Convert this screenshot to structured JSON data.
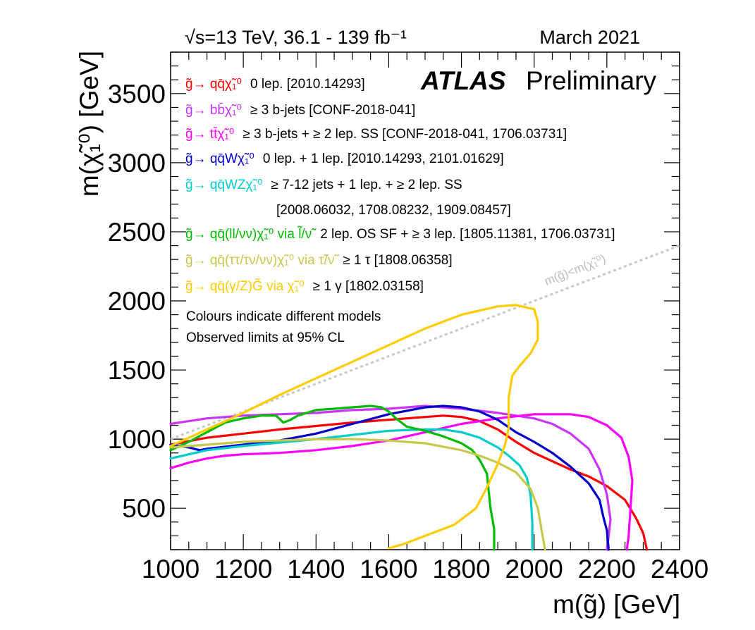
{
  "header": {
    "left": "√s=13 TeV, 36.1 - 139 fb⁻¹",
    "right": "March 2021"
  },
  "experiment": {
    "name": "ATLAS",
    "status": "Preliminary"
  },
  "notes": [
    "Colours indicate different models",
    "Observed limits at 95% CL"
  ],
  "chart_data": {
    "type": "line",
    "xlabel": "m(g̃) [GeV]",
    "ylabel": "m(χ̃₁⁰) [GeV]",
    "xlim": [
      1000,
      2400
    ],
    "ylim": [
      200,
      3800
    ],
    "x_ticks": [
      1000,
      1200,
      1400,
      1600,
      1800,
      2000,
      2200,
      2400
    ],
    "y_ticks": [
      500,
      1000,
      1500,
      2000,
      2500,
      3000,
      3500
    ],
    "diagonal": {
      "label": "m(g̃)<m(χ̃₁⁰)",
      "style": "dotted",
      "color": "#c8c8c8"
    },
    "series": [
      {
        "name": "g̃→ qq̄χ̃₁⁰",
        "desc": "0 lep. [2010.14293]",
        "color": "#ff0000",
        "points": [
          [
            1000,
            960
          ],
          [
            1100,
            1010
          ],
          [
            1200,
            1040
          ],
          [
            1300,
            1070
          ],
          [
            1400,
            1095
          ],
          [
            1500,
            1120
          ],
          [
            1600,
            1140
          ],
          [
            1700,
            1160
          ],
          [
            1750,
            1170
          ],
          [
            1800,
            1160
          ],
          [
            1850,
            1130
          ],
          [
            1900,
            1070
          ],
          [
            1950,
            980
          ],
          [
            2000,
            900
          ],
          [
            2050,
            840
          ],
          [
            2100,
            780
          ],
          [
            2150,
            730
          ],
          [
            2200,
            660
          ],
          [
            2250,
            560
          ],
          [
            2280,
            430
          ],
          [
            2300,
            320
          ],
          [
            2310,
            200
          ]
        ]
      },
      {
        "name": "g̃→ bb̄χ̃₁⁰",
        "desc": "≥ 3 b-jets [CONF-2018-041]",
        "color": "#cc33ff",
        "points": [
          [
            1000,
            1110
          ],
          [
            1100,
            1150
          ],
          [
            1200,
            1170
          ],
          [
            1300,
            1180
          ],
          [
            1400,
            1190
          ],
          [
            1500,
            1210
          ],
          [
            1600,
            1220
          ],
          [
            1700,
            1240
          ],
          [
            1800,
            1220
          ],
          [
            1900,
            1190
          ],
          [
            2000,
            1150
          ],
          [
            2050,
            1110
          ],
          [
            2100,
            1040
          ],
          [
            2150,
            930
          ],
          [
            2180,
            780
          ],
          [
            2200,
            600
          ],
          [
            2210,
            420
          ],
          [
            2205,
            300
          ],
          [
            2200,
            200
          ]
        ]
      },
      {
        "name": "g̃→ tt̄χ̃₁⁰",
        "desc": "≥ 3 b-jets + ≥ 2 lep. SS [CONF-2018-041, 1706.03731]",
        "color": "#ff00ff",
        "points": [
          [
            1000,
            790
          ],
          [
            1050,
            830
          ],
          [
            1100,
            860
          ],
          [
            1150,
            880
          ],
          [
            1200,
            890
          ],
          [
            1300,
            900
          ],
          [
            1400,
            920
          ],
          [
            1500,
            950
          ],
          [
            1600,
            990
          ],
          [
            1700,
            1050
          ],
          [
            1800,
            1110
          ],
          [
            1900,
            1150
          ],
          [
            2000,
            1180
          ],
          [
            2100,
            1180
          ],
          [
            2150,
            1160
          ],
          [
            2200,
            1100
          ],
          [
            2240,
            1010
          ],
          [
            2260,
            870
          ],
          [
            2270,
            700
          ],
          [
            2265,
            500
          ],
          [
            2260,
            300
          ],
          [
            2255,
            200
          ]
        ]
      },
      {
        "name": "g̃→ qq̄Wχ̃₁⁰",
        "desc": "0 lep. + 1 lep. [2010.14293, 2101.01629]",
        "color": "#0000cc",
        "points": [
          [
            1000,
            960
          ],
          [
            1050,
            940
          ],
          [
            1080,
            920
          ],
          [
            1100,
            930
          ],
          [
            1200,
            960
          ],
          [
            1300,
            990
          ],
          [
            1400,
            1040
          ],
          [
            1500,
            1110
          ],
          [
            1600,
            1180
          ],
          [
            1700,
            1230
          ],
          [
            1750,
            1240
          ],
          [
            1800,
            1230
          ],
          [
            1850,
            1200
          ],
          [
            1900,
            1140
          ],
          [
            1950,
            1050
          ],
          [
            2000,
            980
          ],
          [
            2050,
            900
          ],
          [
            2100,
            800
          ],
          [
            2150,
            680
          ],
          [
            2180,
            560
          ],
          [
            2190,
            440
          ],
          [
            2200,
            340
          ],
          [
            2205,
            200
          ]
        ]
      },
      {
        "name": "g̃→ qq̄WZχ̃₁⁰",
        "desc": "≥ 7-12 jets + 1 lep. + ≥ 2 lep. SS",
        "desc2": "[2008.06032, 1708.08232, 1909.08457]",
        "color": "#00cccc",
        "points": [
          [
            1000,
            860
          ],
          [
            1100,
            920
          ],
          [
            1200,
            950
          ],
          [
            1300,
            975
          ],
          [
            1400,
            1000
          ],
          [
            1500,
            1030
          ],
          [
            1600,
            1060
          ],
          [
            1700,
            1070
          ],
          [
            1750,
            1070
          ],
          [
            1800,
            1050
          ],
          [
            1850,
            1010
          ],
          [
            1900,
            940
          ],
          [
            1930,
            880
          ],
          [
            1960,
            810
          ],
          [
            1980,
            720
          ],
          [
            1990,
            600
          ],
          [
            1995,
            400
          ],
          [
            1995,
            200
          ]
        ]
      },
      {
        "name": "g̃→ qq̄(ll/νν)χ̃₁⁰ via l̃/ν̃",
        "desc": "2 lep. OS SF + ≥ 3 lep. [1805.11381, 1706.03731]",
        "color": "#00bb00",
        "points": [
          [
            1000,
            920
          ],
          [
            1050,
            980
          ],
          [
            1100,
            1050
          ],
          [
            1150,
            1120
          ],
          [
            1200,
            1150
          ],
          [
            1250,
            1170
          ],
          [
            1290,
            1170
          ],
          [
            1310,
            1120
          ],
          [
            1330,
            1140
          ],
          [
            1350,
            1170
          ],
          [
            1400,
            1210
          ],
          [
            1450,
            1220
          ],
          [
            1500,
            1230
          ],
          [
            1550,
            1240
          ],
          [
            1580,
            1230
          ],
          [
            1600,
            1200
          ],
          [
            1620,
            1150
          ],
          [
            1650,
            1090
          ],
          [
            1700,
            1060
          ],
          [
            1750,
            1020
          ],
          [
            1800,
            970
          ],
          [
            1830,
            920
          ],
          [
            1850,
            850
          ],
          [
            1870,
            750
          ],
          [
            1880,
            500
          ],
          [
            1890,
            350
          ],
          [
            1890,
            200
          ]
        ]
      },
      {
        "name": "g̃→ qq̄(ττ/τν/νν)χ̃₁⁰ via τ̃/ν̃",
        "desc": "≥ 1 τ [1808.06358]",
        "color": "#c8c84a",
        "points": [
          [
            1000,
            940
          ],
          [
            1100,
            960
          ],
          [
            1200,
            980
          ],
          [
            1300,
            990
          ],
          [
            1400,
            1000
          ],
          [
            1500,
            1000
          ],
          [
            1600,
            990
          ],
          [
            1700,
            970
          ],
          [
            1800,
            920
          ],
          [
            1850,
            880
          ],
          [
            1900,
            830
          ],
          [
            1950,
            760
          ],
          [
            1990,
            640
          ],
          [
            2010,
            500
          ],
          [
            2020,
            350
          ],
          [
            2030,
            200
          ]
        ]
      },
      {
        "name": "g̃→ qq̄(γ/Z)G̃ via χ̃₁⁰",
        "desc": "≥ 1 γ [1802.03158]",
        "color": "#ffcc00",
        "points": [
          [
            1000,
            950
          ],
          [
            1100,
            1070
          ],
          [
            1200,
            1190
          ],
          [
            1300,
            1320
          ],
          [
            1400,
            1440
          ],
          [
            1500,
            1560
          ],
          [
            1600,
            1680
          ],
          [
            1700,
            1800
          ],
          [
            1800,
            1900
          ],
          [
            1900,
            1960
          ],
          [
            1950,
            1970
          ],
          [
            2000,
            1940
          ],
          [
            2010,
            1850
          ],
          [
            2010,
            1720
          ],
          [
            1990,
            1620
          ],
          [
            1960,
            1530
          ],
          [
            1940,
            1460
          ],
          [
            1930,
            1300
          ],
          [
            1930,
            1080
          ],
          [
            1920,
            960
          ],
          [
            1900,
            820
          ],
          [
            1870,
            650
          ],
          [
            1840,
            500
          ],
          [
            1780,
            380
          ],
          [
            1700,
            300
          ],
          [
            1640,
            240
          ],
          [
            1600,
            210
          ]
        ]
      }
    ]
  }
}
